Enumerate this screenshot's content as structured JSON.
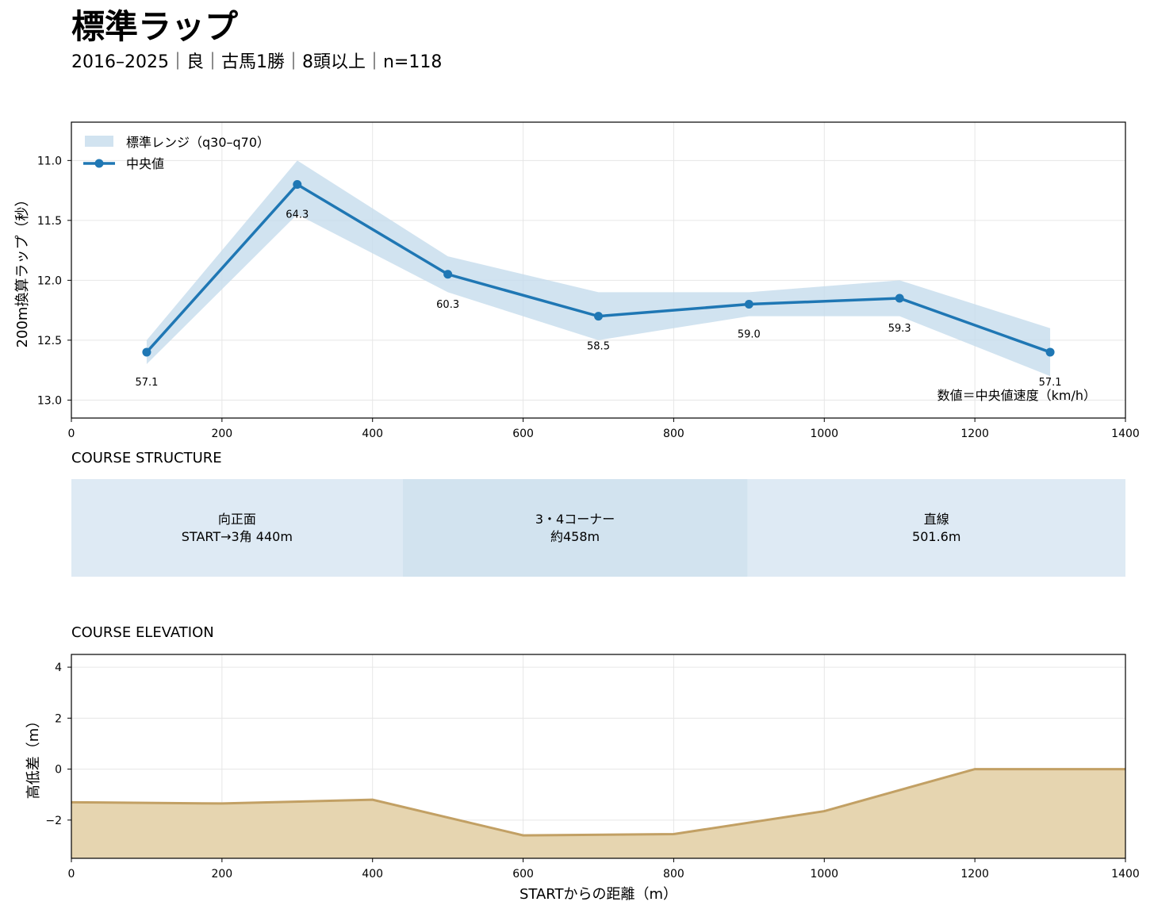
{
  "header": {
    "title": "標準ラップ",
    "subtitle": "2016–2025｜良｜古馬1勝｜8頭以上｜n=118"
  },
  "chart_data": [
    {
      "type": "line",
      "ylabel": "200m換算ラップ（秒）",
      "xlim": [
        0,
        1400
      ],
      "ylim": [
        13.15,
        10.68
      ],
      "y_inverted": true,
      "xticks": [
        0,
        200,
        400,
        600,
        800,
        1000,
        1200,
        1400
      ],
      "yticks": [
        11.0,
        11.5,
        12.0,
        12.5,
        13.0
      ],
      "grid": true,
      "legend_position": "top-left",
      "legend": [
        {
          "label": "標準レンジ（q30–q70）",
          "kind": "band"
        },
        {
          "label": "中央値",
          "kind": "line"
        }
      ],
      "x": [
        100,
        300,
        500,
        700,
        900,
        1100,
        1300
      ],
      "series": [
        {
          "name": "中央値",
          "values": [
            12.6,
            11.2,
            11.95,
            12.3,
            12.2,
            12.15,
            12.6
          ],
          "color": "#1f77b4"
        }
      ],
      "band": {
        "name": "標準レンジ（q30–q70）",
        "low": [
          12.5,
          11.0,
          11.8,
          12.1,
          12.1,
          12.0,
          12.4
        ],
        "high": [
          12.7,
          11.45,
          12.1,
          12.5,
          12.3,
          12.3,
          12.8
        ],
        "color": "#c5dcec"
      },
      "data_labels": [
        "57.1",
        "64.3",
        "60.3",
        "58.5",
        "59.0",
        "59.3",
        "57.1"
      ],
      "annotation": "数値＝中央値速度（km/h）"
    },
    {
      "type": "area",
      "section_title": "COURSE ELEVATION",
      "ylabel": "高低差（m）",
      "xlabel": "STARTからの距離（m）",
      "xlim": [
        0,
        1400
      ],
      "ylim": [
        -3.5,
        4.5
      ],
      "xticks": [
        0,
        200,
        400,
        600,
        800,
        1000,
        1200,
        1400
      ],
      "yticks": [
        4,
        2,
        0,
        -2
      ],
      "ytick_labels": [
        "4",
        "2",
        "0",
        "−2"
      ],
      "grid": true,
      "x": [
        0,
        200,
        400,
        600,
        800,
        1000,
        1200,
        1400
      ],
      "values": [
        -1.3,
        -1.35,
        -1.2,
        -2.6,
        -2.55,
        -1.65,
        0.0,
        0.0
      ],
      "line_color": "#c2a064",
      "fill_color": "#e6d5b0"
    }
  ],
  "course_structure": {
    "title": "COURSE STRUCTURE",
    "segments": [
      {
        "line1": "向正面",
        "line2": "START→3角 440m",
        "start": 0,
        "end": 440,
        "color": "#deeaf4"
      },
      {
        "line1": "3・4コーナー",
        "line2": "約458m",
        "start": 440,
        "end": 898,
        "color": "#d2e3ef"
      },
      {
        "line1": "直線",
        "line2": "501.6m",
        "start": 898,
        "end": 1400,
        "color": "#deeaf4"
      }
    ]
  }
}
